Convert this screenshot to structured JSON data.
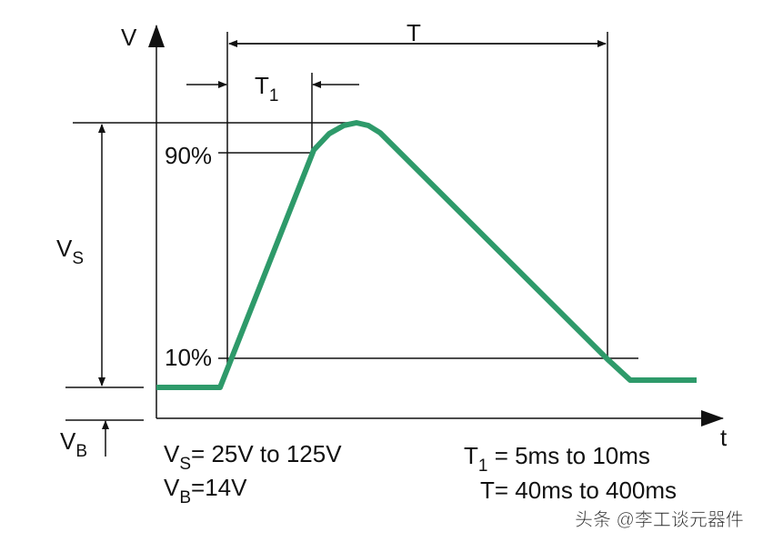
{
  "axes": {
    "y_label": "V",
    "x_label": "t"
  },
  "labels": {
    "period": "T",
    "rise": {
      "main": "T",
      "sub": "1"
    },
    "p90": "90%",
    "p10": "10%",
    "vs": {
      "main": "V",
      "sub": "S"
    },
    "vb": {
      "main": "V",
      "sub": "B"
    }
  },
  "notes": [
    {
      "main": "V",
      "sub": "S",
      "rest": "= 25V to 125V"
    },
    {
      "main": "V",
      "sub": "B",
      "rest": "=14V"
    },
    {
      "main": "T",
      "sub": "1",
      "rest": " = 5ms to 10ms"
    },
    {
      "main": "T",
      "rest": "= 40ms to 400ms"
    }
  ],
  "watermark": "头条 @李工谈元器件"
}
